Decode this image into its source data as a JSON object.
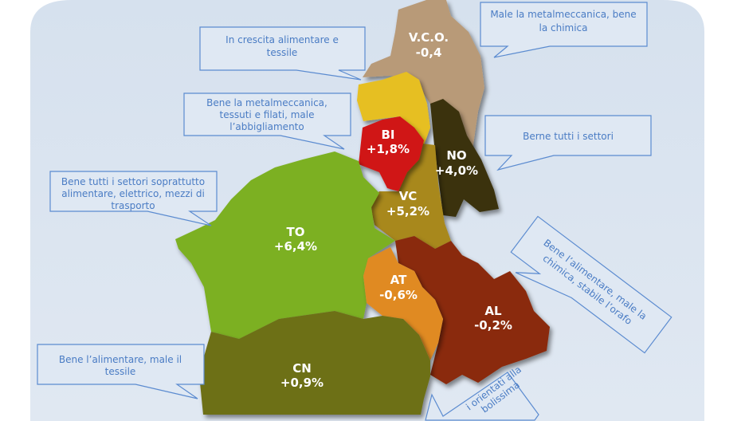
{
  "colors": {
    "background_panel": "#dce6f1",
    "callout_border": "#5b8bd0",
    "callout_text": "#4a7cc4",
    "label_text": "#ffffff"
  },
  "provinces": [
    {
      "id": "vco",
      "code": "V.C.O.",
      "value": "-0,4",
      "color": "#b89a78"
    },
    {
      "id": "upper",
      "code": "",
      "value": "",
      "color": "#e6bf22"
    },
    {
      "id": "bi",
      "code": "BI",
      "value": "+1,8%",
      "color": "#d01818"
    },
    {
      "id": "no",
      "code": "NO",
      "value": "+4,0%",
      "color": "#3b3310"
    },
    {
      "id": "vc",
      "code": "VC",
      "value": "+5,2%",
      "color": "#a8881e"
    },
    {
      "id": "to",
      "code": "TO",
      "value": "+6,4%",
      "color": "#7cb022"
    },
    {
      "id": "at",
      "code": "AT",
      "value": "-0,6%",
      "color": "#e08a22"
    },
    {
      "id": "al",
      "code": "AL",
      "value": "-0,2%",
      "color": "#8a2c0a"
    },
    {
      "id": "cn",
      "code": "CN",
      "value": "+0,9%",
      "color": "#6d6f16"
    }
  ],
  "callouts": {
    "vco": [
      "Male la metalmeccanica, bene",
      "la chimica"
    ],
    "upper": [
      "In crescita alimentare e",
      "tessile"
    ],
    "bi": [
      "Bene la metalmeccanica,",
      "tessuti e filati, male",
      "l’abbigliamento"
    ],
    "no": [
      "Berne tutti i settori"
    ],
    "to": [
      "Bene tutti i settori soprattutto",
      "alimentare, elettrico, mezzi di",
      "trasporto"
    ],
    "al": [
      "Bene l’alimentare, male la",
      "chimica, stabile l’orafo"
    ],
    "cn": [
      "Bene l’alimentare, male il",
      "tessile"
    ],
    "at": [
      "i orientati alla",
      "bolissima"
    ]
  }
}
